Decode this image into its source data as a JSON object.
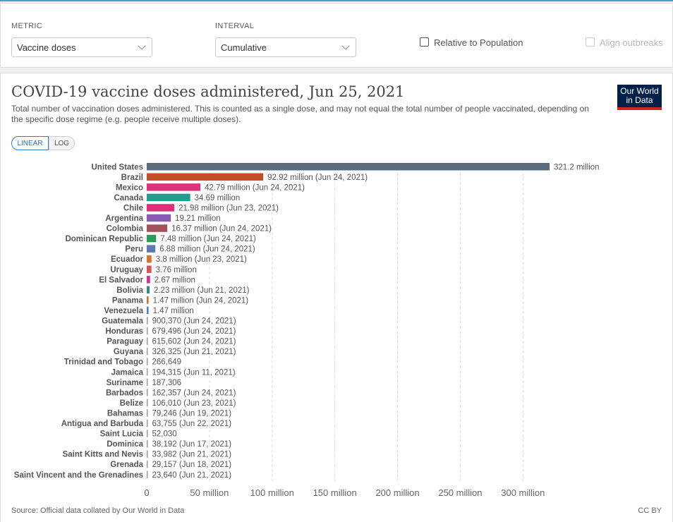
{
  "controls": {
    "metric_label": "METRIC",
    "metric_value": "Vaccine doses",
    "interval_label": "INTERVAL",
    "interval_value": "Cumulative",
    "relative_label": "Relative to Population",
    "align_label": "Align outbreaks"
  },
  "header": {
    "title": "COVID-19 vaccine doses administered, Jun 25, 2021",
    "subtitle": "Total number of vaccination doses administered. This is counted as a single dose, and may not equal the total number of people vaccinated, depending on the specific dose regime (e.g. people receive multiple doses).",
    "logo_line1": "Our World",
    "logo_line2": "in Data"
  },
  "scale_toggle": {
    "linear": "LINEAR",
    "log": "LOG",
    "selected": "LINEAR"
  },
  "footer": {
    "source": "Source: Official data collated by Our World in Data",
    "license": "CC BY"
  },
  "chart_data": {
    "type": "bar",
    "orientation": "horizontal",
    "xlim": [
      0,
      321200000
    ],
    "grid": true,
    "x_ticks": [
      {
        "value": 0,
        "label": "0"
      },
      {
        "value": 50000000,
        "label": "50 million"
      },
      {
        "value": 100000000,
        "label": "100 million"
      },
      {
        "value": 150000000,
        "label": "150 million"
      },
      {
        "value": 200000000,
        "label": "200 million"
      },
      {
        "value": 250000000,
        "label": "250 million"
      },
      {
        "value": 300000000,
        "label": "300 million"
      }
    ],
    "bars": [
      {
        "country": "United States",
        "value": 321200000,
        "label": "321.2 million",
        "color": "#5b6b7f"
      },
      {
        "country": "Brazil",
        "value": 92920000,
        "label": "92.92 million (Jun 24, 2021)",
        "color": "#c1502a"
      },
      {
        "country": "Mexico",
        "value": 42790000,
        "label": "42.79 million (Jun 24, 2021)",
        "color": "#d9337a"
      },
      {
        "country": "Canada",
        "value": 34690000,
        "label": "34.69 million",
        "color": "#259c8e"
      },
      {
        "country": "Chile",
        "value": 21980000,
        "label": "21.98 million (Jun 23, 2021)",
        "color": "#e02f7a"
      },
      {
        "country": "Argentina",
        "value": 19210000,
        "label": "19.21 million",
        "color": "#8a5bb0"
      },
      {
        "country": "Colombia",
        "value": 16370000,
        "label": "16.37 million (Jun 24, 2021)",
        "color": "#a3505a"
      },
      {
        "country": "Dominican Republic",
        "value": 7480000,
        "label": "7.48 million (Jun 24, 2021)",
        "color": "#2b9b58"
      },
      {
        "country": "Peru",
        "value": 6880000,
        "label": "6.88 million (Jun 24, 2021)",
        "color": "#5a7ab0"
      },
      {
        "country": "Ecuador",
        "value": 3800000,
        "label": "3.8 million (Jun 23, 2021)",
        "color": "#d8742a"
      },
      {
        "country": "Uruguay",
        "value": 3760000,
        "label": "3.76 million",
        "color": "#d9545a"
      },
      {
        "country": "El Salvador",
        "value": 2670000,
        "label": "2.67 million",
        "color": "#d92f8c"
      },
      {
        "country": "Bolivia",
        "value": 2230000,
        "label": "2.23 million (Jun 21, 2021)",
        "color": "#2b8c7f"
      },
      {
        "country": "Panama",
        "value": 1470000,
        "label": "1.47 million (Jun 24, 2021)",
        "color": "#c8703a"
      },
      {
        "country": "Venezuela",
        "value": 1470000,
        "label": "1.47 million",
        "color": "#4a82c0"
      },
      {
        "country": "Guatemala",
        "value": 900370,
        "label": "900,370 (Jun 24, 2021)",
        "color": "#999999"
      },
      {
        "country": "Honduras",
        "value": 679496,
        "label": "679,496 (Jun 24, 2021)",
        "color": "#999999"
      },
      {
        "country": "Paraguay",
        "value": 615602,
        "label": "615,602 (Jun 24, 2021)",
        "color": "#999999"
      },
      {
        "country": "Guyana",
        "value": 326325,
        "label": "326,325 (Jun 21, 2021)",
        "color": "#999999"
      },
      {
        "country": "Trinidad and Tobago",
        "value": 266649,
        "label": "266,649",
        "color": "#999999"
      },
      {
        "country": "Jamaica",
        "value": 194315,
        "label": "194,315 (Jun 11, 2021)",
        "color": "#999999"
      },
      {
        "country": "Suriname",
        "value": 187306,
        "label": "187,306",
        "color": "#999999"
      },
      {
        "country": "Barbados",
        "value": 162357,
        "label": "162,357 (Jun 24, 2021)",
        "color": "#999999"
      },
      {
        "country": "Belize",
        "value": 106010,
        "label": "106,010 (Jun 23, 2021)",
        "color": "#999999"
      },
      {
        "country": "Bahamas",
        "value": 79246,
        "label": "79,246 (Jun 19, 2021)",
        "color": "#999999"
      },
      {
        "country": "Antigua and Barbuda",
        "value": 63755,
        "label": "63,755 (Jun 22, 2021)",
        "color": "#999999"
      },
      {
        "country": "Saint Lucia",
        "value": 52030,
        "label": "52,030",
        "color": "#999999"
      },
      {
        "country": "Dominica",
        "value": 38192,
        "label": "38,192 (Jun 17, 2021)",
        "color": "#999999"
      },
      {
        "country": "Saint Kitts and Nevis",
        "value": 33982,
        "label": "33,982 (Jun 21, 2021)",
        "color": "#999999"
      },
      {
        "country": "Grenada",
        "value": 29157,
        "label": "29,157 (Jun 18, 2021)",
        "color": "#999999"
      },
      {
        "country": "Saint Vincent and the Grenadines",
        "value": 23640,
        "label": "23,640 (Jun 21, 2021)",
        "color": "#999999"
      }
    ]
  }
}
